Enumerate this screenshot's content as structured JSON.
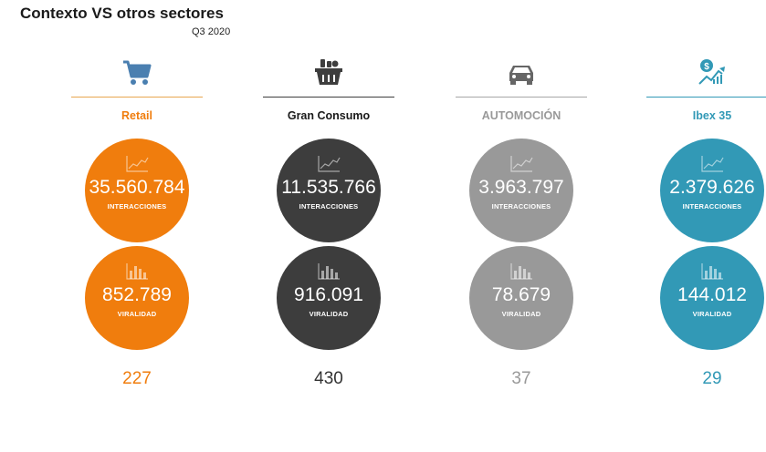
{
  "header": {
    "title": "Contexto VS otros sectores",
    "period": "Q3 2020"
  },
  "sectors": [
    {
      "name": "Retail",
      "icon": "shopping-cart-icon",
      "color": "#f07d0d",
      "accent": "#e8a74f",
      "interactions_value": "35.560.784",
      "interactions_label": "INTERACCIONES",
      "virality_value": "852.789",
      "virality_label": "VIRALIDAD",
      "count": "227"
    },
    {
      "name": "Gran Consumo",
      "icon": "grocery-basket-icon",
      "color": "#3d3d3d",
      "accent": "#3d3d3d",
      "interactions_value": "11.535.766",
      "interactions_label": "INTERACCIONES",
      "virality_value": "916.091",
      "virality_label": "VIRALIDAD",
      "count": "430"
    },
    {
      "name": "AUTOMOCIÓN",
      "icon": "car-icon",
      "color": "#999999",
      "accent": "#a6a6a6",
      "interactions_value": "3.963.797",
      "interactions_label": "INTERACCIONES",
      "virality_value": "78.679",
      "virality_label": "VIRALIDAD",
      "count": "37"
    },
    {
      "name": "Ibex 35",
      "icon": "money-growth-icon",
      "color": "#3299b6",
      "accent": "#3299b6",
      "interactions_value": "2.379.626",
      "interactions_label": "INTERACCIONES",
      "virality_value": "144.012",
      "virality_label": "VIRALIDAD",
      "count": "29"
    }
  ]
}
